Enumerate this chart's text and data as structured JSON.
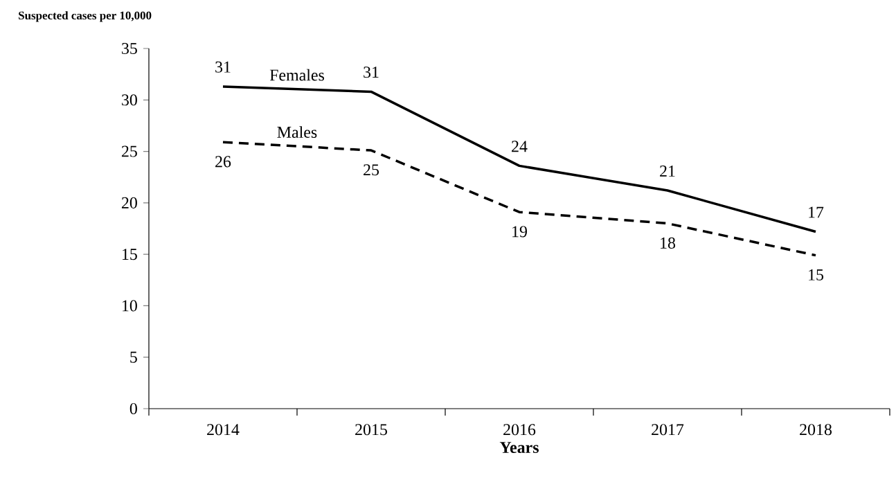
{
  "chart_data": {
    "type": "line",
    "xlabel": "Years",
    "ylabel": "Suspected cases per 10,000",
    "categories": [
      "2014",
      "2015",
      "2016",
      "2017",
      "2018"
    ],
    "series": [
      {
        "name": "Females",
        "color": "#000000",
        "line_style": "solid",
        "values": [
          31.3,
          30.8,
          23.6,
          21.2,
          17.2
        ],
        "value_labels": [
          "31",
          "31",
          "24",
          "21",
          "17"
        ]
      },
      {
        "name": "Males",
        "color": "#000000",
        "line_style": "dashed",
        "values": [
          25.9,
          25.1,
          19.1,
          18.0,
          14.9
        ],
        "value_labels": [
          "26",
          "25",
          "19",
          "18",
          "15"
        ]
      }
    ],
    "ylim": [
      0,
      35
    ],
    "yticks": [
      0,
      5,
      10,
      15,
      20,
      25,
      30,
      35
    ],
    "grid": false,
    "legend": false,
    "marker": "none"
  }
}
